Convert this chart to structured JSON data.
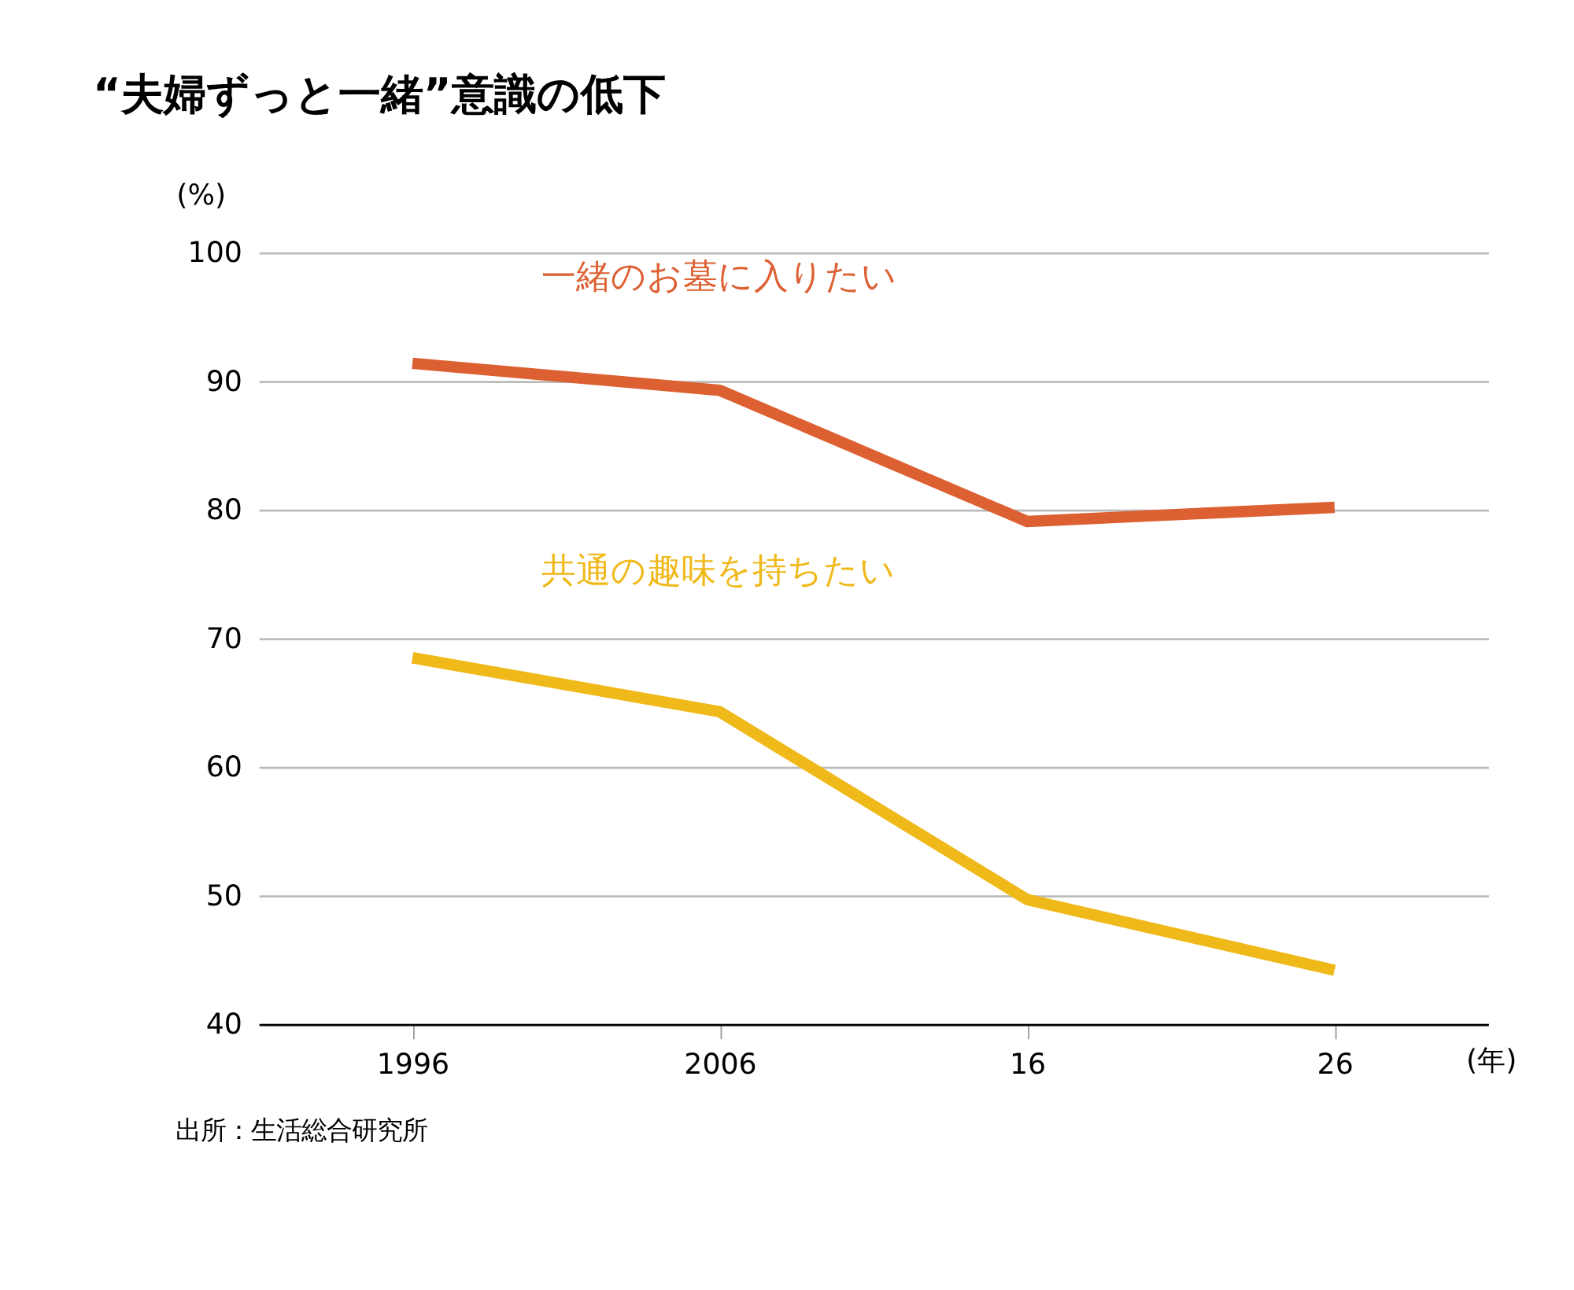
{
  "chart_data": {
    "type": "line",
    "title": "“夫婦ずっと一緒”意識の低下",
    "ylabel": "(%)",
    "xlabel": "(年)",
    "categories": [
      "1996",
      "2006",
      "16",
      "26"
    ],
    "series": [
      {
        "name": "一緒のお墓に入りたい",
        "color": "#dd6032",
        "values": [
          91.4,
          89.3,
          79.1,
          80.2
        ]
      },
      {
        "name": "共通の趣味を持ちたい",
        "color": "#f0b91a",
        "values": [
          68.5,
          64.3,
          49.7,
          44.2
        ]
      }
    ],
    "ylim": [
      40,
      100
    ],
    "yticks": [
      40,
      50,
      60,
      70,
      80,
      90,
      100
    ],
    "grid": "y",
    "legend": false,
    "marker": "none",
    "line_style": "solid",
    "annotations": [
      "出所：生活総合研究所"
    ]
  }
}
